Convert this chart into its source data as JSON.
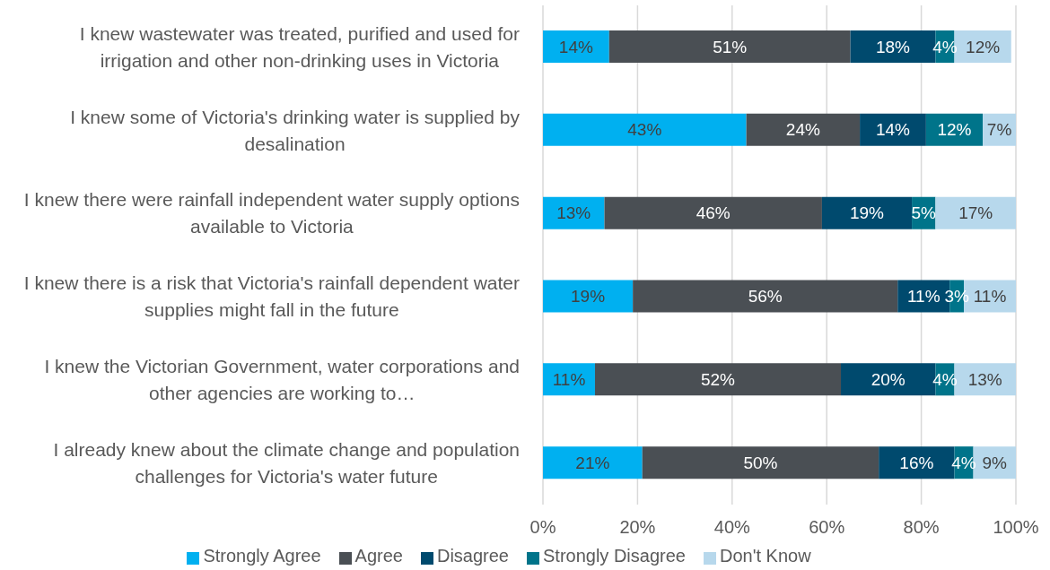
{
  "chart_data": {
    "type": "bar",
    "orientation": "horizontal",
    "stacked": true,
    "categories": [
      "I knew wastewater was treated, purified and used for irrigation and other non-drinking uses in Victoria",
      "I knew some of Victoria's drinking water is supplied by desalination",
      "I knew there were rainfall independent water supply options available to Victoria",
      "I knew there is a risk that Victoria's rainfall dependent water supplies might fall in the future",
      "I knew the Victorian Government, water corporations and other agencies are working to…",
      "I already knew about the climate change and population challenges for Victoria's water future"
    ],
    "series": [
      {
        "name": "Strongly Agree",
        "color": "#00b0f0",
        "values": [
          14,
          43,
          13,
          19,
          11,
          21
        ],
        "value_labels": [
          "14%",
          "43%",
          "13%",
          "19%",
          "11%",
          "21%"
        ]
      },
      {
        "name": "Agree",
        "color": "#4a4f54",
        "values": [
          51,
          24,
          46,
          56,
          52,
          50
        ],
        "value_labels": [
          "51%",
          "24%",
          "46%",
          "56%",
          "52%",
          "50%"
        ]
      },
      {
        "name": "Disagree",
        "color": "#004a6e",
        "values": [
          18,
          14,
          19,
          11,
          20,
          16
        ],
        "value_labels": [
          "18%",
          "14%",
          "19%",
          "11%",
          "20%",
          "16%"
        ]
      },
      {
        "name": "Strongly Disagree",
        "color": "#00748a",
        "values": [
          4,
          12,
          5,
          3,
          4,
          4
        ],
        "value_labels": [
          "4%",
          "12%",
          "5%",
          "3%",
          "4%",
          "4%"
        ]
      },
      {
        "name": "Don't Know",
        "color": "#b7d8ec",
        "values": [
          12,
          7,
          17,
          11,
          13,
          9
        ],
        "value_labels": [
          "12%",
          "7%",
          "17%",
          "11%",
          "13%",
          "9%"
        ]
      }
    ],
    "xlim": [
      0,
      100
    ],
    "xticks": [
      {
        "value": 0,
        "label": "0%"
      },
      {
        "value": 20,
        "label": "20%"
      },
      {
        "value": 40,
        "label": "40%"
      },
      {
        "value": 60,
        "label": "60%"
      },
      {
        "value": 80,
        "label": "80%"
      },
      {
        "value": 100,
        "label": "100%"
      }
    ],
    "grid": "x",
    "legend": "bottom"
  }
}
